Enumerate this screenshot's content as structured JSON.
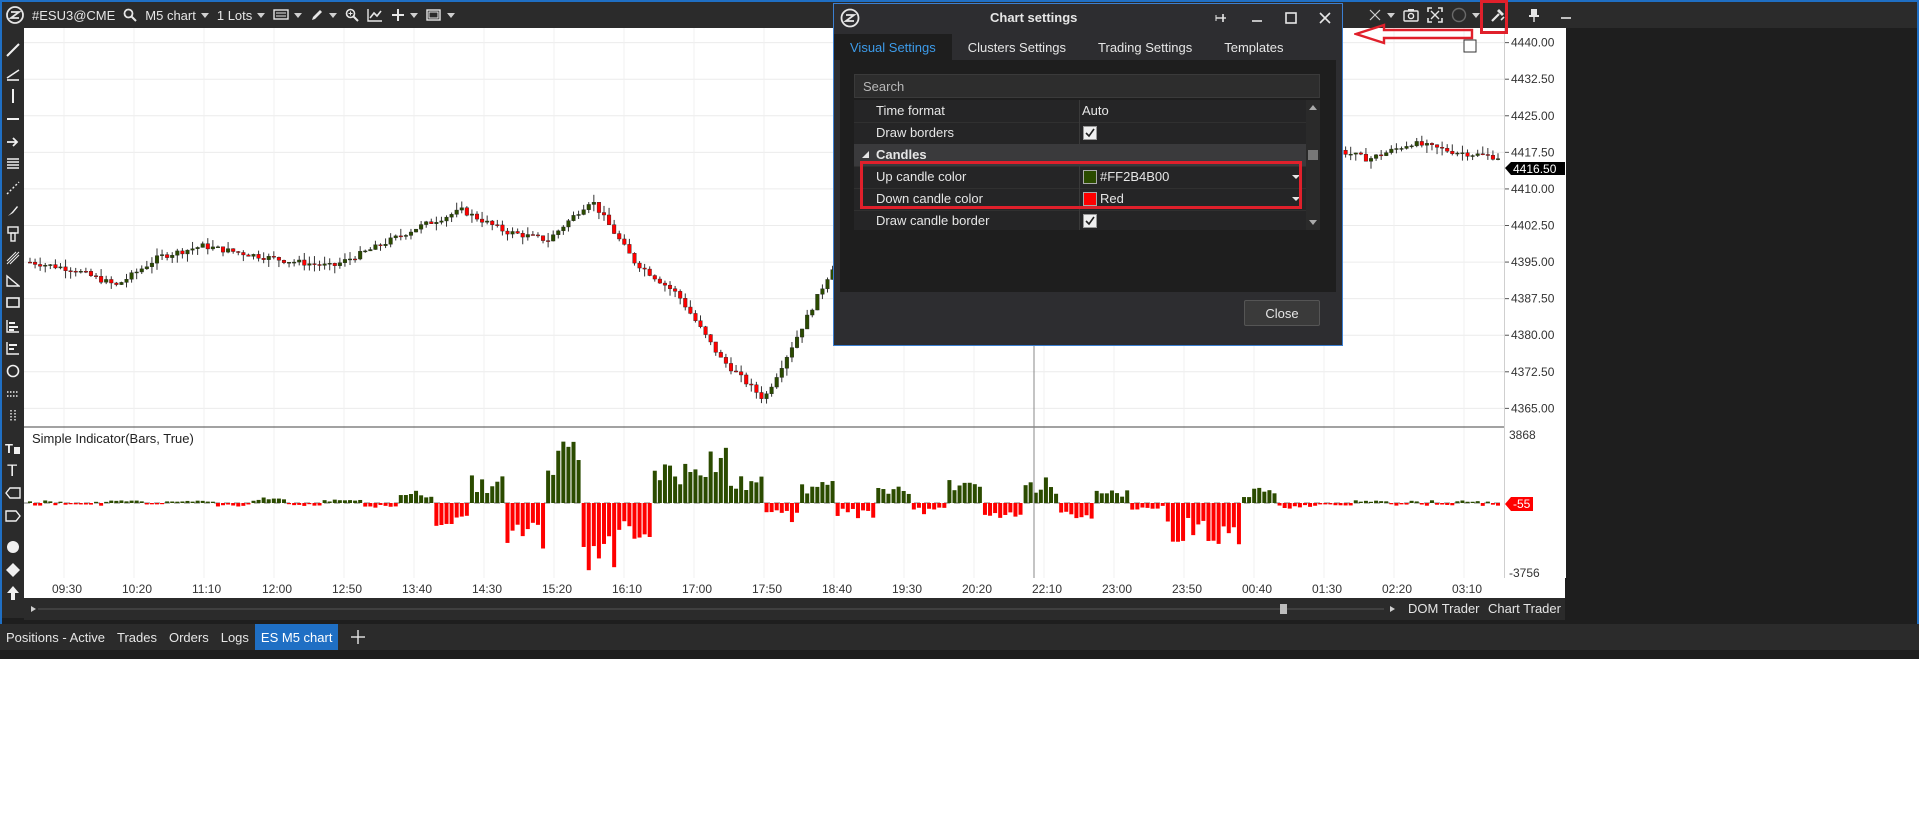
{
  "toolbar": {
    "symbol": "#ESU3@CME",
    "chart_type": "M5 chart",
    "lots": "1 Lots"
  },
  "indicator": {
    "label": "Simple Indicator(Bars, True)",
    "current_value_label": "-55"
  },
  "price_axis": {
    "labels": [
      "4440.00",
      "4432.50",
      "4425.00",
      "4417.50",
      "4410.00",
      "4402.50",
      "4395.00",
      "4387.50",
      "4380.00",
      "4372.50",
      "4365.00"
    ],
    "current_price": "4416.50"
  },
  "indicator_axis": {
    "top": "3868",
    "bottom": "-3756"
  },
  "time_axis": {
    "labels": [
      "09:30",
      "10:20",
      "11:10",
      "12:00",
      "12:50",
      "13:40",
      "14:30",
      "15:20",
      "16:10",
      "17:00",
      "17:50",
      "18:40",
      "19:30",
      "20:20",
      "22:10",
      "23:00",
      "23:50",
      "00:40",
      "01:30",
      "02:20",
      "03:10"
    ]
  },
  "scrollbar": {
    "dom_trader": "DOM Trader",
    "chart_trader": "Chart Trader"
  },
  "bottom_tabs": [
    {
      "label": "Positions - Active"
    },
    {
      "label": "Trades"
    },
    {
      "label": "Orders"
    },
    {
      "label": "Logs"
    },
    {
      "label": "ES M5 chart"
    }
  ],
  "dialog": {
    "title": "Chart settings",
    "tabs": [
      "Visual Settings",
      "Clusters Settings",
      "Trading Settings",
      "Templates"
    ],
    "search_placeholder": "Search",
    "rows": {
      "time_format": {
        "name": "Time format",
        "value": "Auto"
      },
      "draw_borders": {
        "name": "Draw borders",
        "checked": true
      },
      "section": "Candles",
      "up_color": {
        "name": "Up candle color",
        "value": "#FF2B4B00",
        "swatch": "#2b4b00"
      },
      "down_color": {
        "name": "Down candle color",
        "value": "Red",
        "swatch": "#ff0000"
      },
      "draw_candle_border": {
        "name": "Draw candle border",
        "checked": true
      }
    },
    "close_label": "Close"
  },
  "colors": {
    "up": "#2b4b00",
    "down": "#ff0000",
    "accent": "#1f6fc4",
    "highlight": "#e0202b"
  },
  "chart_data": {
    "type": "candlestick",
    "ylim": [
      4362,
      4443
    ],
    "times": [
      "09:30",
      "10:20",
      "11:10",
      "12:00",
      "12:50",
      "13:40",
      "14:30",
      "15:20",
      "16:10",
      "17:00",
      "17:50",
      "18:40",
      "19:30",
      "20:20",
      "22:10",
      "23:00",
      "23:50",
      "00:40",
      "01:30",
      "02:20",
      "03:10"
    ],
    "price_path": [
      4395.0,
      4393.5,
      4390.2,
      4396.1,
      4398.3,
      4396.7,
      4395.2,
      4394.1,
      4398.0,
      4402.2,
      4405.6,
      4401.3,
      4399.5,
      4407.8,
      4395.1,
      4388.4,
      4375.2,
      4366.9,
      4383.7,
      4401.1,
      4389.4,
      4393.7,
      4402.2,
      4404.6,
      4397.8,
      4392.4,
      4403.3,
      4420.1,
      4422.4,
      4417.5,
      4418.7,
      4416.1,
      4419.4,
      4417.6,
      4416.5
    ],
    "indicator_range": [
      -3756,
      3868
    ],
    "indicator_path": [
      0,
      -100,
      150,
      -80,
      120,
      -200,
      300,
      -150,
      200,
      -250,
      800,
      -1200,
      1500,
      -2500,
      3800,
      -3700,
      -2000,
      2500,
      3500,
      1500,
      -1000,
      1200,
      -800,
      900,
      -600,
      1600,
      -800,
      1400,
      -1200,
      700,
      -400,
      -2000,
      -2500,
      900,
      -300,
      -200,
      150,
      -100,
      -150,
      100,
      -55
    ]
  }
}
